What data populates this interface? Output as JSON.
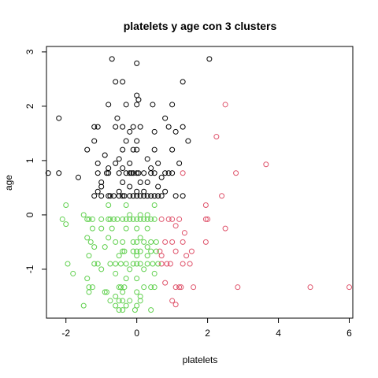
{
  "chart_data": {
    "type": "scatter",
    "title": "platelets  y  age con  3  clusters",
    "xlabel": "platelets",
    "ylabel": "age",
    "xlim": [
      -2.55,
      6.1
    ],
    "ylim": [
      -1.9,
      3.1
    ],
    "x_ticks": [
      -2,
      0,
      2,
      4,
      6
    ],
    "y_ticks": [
      -1,
      0,
      1,
      2,
      3
    ],
    "x_tick_labels": [
      "-2",
      "0",
      "2",
      "4",
      "6"
    ],
    "y_tick_labels": [
      "-1",
      "0",
      "1",
      "2",
      "3"
    ],
    "grid": false,
    "legend": "none",
    "series": [
      {
        "color": "#000000",
        "points": [
          [
            -0.7,
            2.87
          ],
          [
            0.0,
            2.79
          ],
          [
            2.05,
            2.87
          ],
          [
            -0.6,
            2.45
          ],
          [
            -0.4,
            2.45
          ],
          [
            1.3,
            2.45
          ],
          [
            0.0,
            2.2
          ],
          [
            0.05,
            2.12
          ],
          [
            -0.8,
            2.03
          ],
          [
            -0.3,
            2.03
          ],
          [
            0.0,
            2.03
          ],
          [
            0.45,
            2.03
          ],
          [
            1.0,
            2.03
          ],
          [
            -2.2,
            1.78
          ],
          [
            -0.55,
            1.78
          ],
          [
            0.8,
            1.78
          ],
          [
            -1.2,
            1.62
          ],
          [
            -1.1,
            1.62
          ],
          [
            -0.6,
            1.62
          ],
          [
            -0.4,
            1.62
          ],
          [
            -0.1,
            1.62
          ],
          [
            0.1,
            1.62
          ],
          [
            0.9,
            1.62
          ],
          [
            1.3,
            1.62
          ],
          [
            -0.2,
            1.53
          ],
          [
            0.5,
            1.53
          ],
          [
            1.1,
            1.53
          ],
          [
            -1.2,
            1.36
          ],
          [
            -0.3,
            1.36
          ],
          [
            0.0,
            1.36
          ],
          [
            1.45,
            1.36
          ],
          [
            -1.4,
            1.2
          ],
          [
            -0.4,
            1.2
          ],
          [
            -0.1,
            1.2
          ],
          [
            0.0,
            1.2
          ],
          [
            0.5,
            1.2
          ],
          [
            1.0,
            1.2
          ],
          [
            -0.9,
            1.1
          ],
          [
            -0.5,
            1.03
          ],
          [
            0.3,
            1.03
          ],
          [
            -1.1,
            0.95
          ],
          [
            -0.6,
            0.95
          ],
          [
            -0.2,
            0.95
          ],
          [
            0.6,
            0.95
          ],
          [
            1.2,
            0.95
          ],
          [
            -0.8,
            0.86
          ],
          [
            -0.4,
            0.86
          ],
          [
            0.4,
            0.86
          ],
          [
            -2.5,
            0.77
          ],
          [
            -2.2,
            0.77
          ],
          [
            -1.1,
            0.77
          ],
          [
            -0.85,
            0.77
          ],
          [
            -0.8,
            0.77
          ],
          [
            -0.5,
            0.77
          ],
          [
            -0.3,
            0.77
          ],
          [
            -0.2,
            0.77
          ],
          [
            -0.15,
            0.77
          ],
          [
            -0.1,
            0.77
          ],
          [
            0.0,
            0.77
          ],
          [
            0.05,
            0.77
          ],
          [
            0.2,
            0.77
          ],
          [
            0.4,
            0.77
          ],
          [
            0.5,
            0.77
          ],
          [
            0.8,
            0.77
          ],
          [
            0.9,
            0.77
          ],
          [
            1.0,
            0.77
          ],
          [
            -1.65,
            0.69
          ],
          [
            0.7,
            0.69
          ],
          [
            -1.0,
            0.6
          ],
          [
            -0.4,
            0.6
          ],
          [
            0.1,
            0.6
          ],
          [
            0.3,
            0.6
          ],
          [
            -1.0,
            0.52
          ],
          [
            -0.2,
            0.52
          ],
          [
            0.6,
            0.52
          ],
          [
            -1.1,
            0.43
          ],
          [
            -0.5,
            0.43
          ],
          [
            0.0,
            0.43
          ],
          [
            0.2,
            0.43
          ],
          [
            0.8,
            0.43
          ],
          [
            -1.2,
            0.35
          ],
          [
            -1.0,
            0.35
          ],
          [
            -0.8,
            0.35
          ],
          [
            -0.75,
            0.35
          ],
          [
            -0.65,
            0.35
          ],
          [
            -0.5,
            0.35
          ],
          [
            -0.4,
            0.35
          ],
          [
            -0.35,
            0.35
          ],
          [
            -0.2,
            0.35
          ],
          [
            -0.1,
            0.35
          ],
          [
            0.0,
            0.35
          ],
          [
            0.1,
            0.35
          ],
          [
            0.2,
            0.35
          ],
          [
            0.3,
            0.35
          ],
          [
            0.4,
            0.35
          ],
          [
            0.5,
            0.35
          ],
          [
            0.6,
            0.35
          ],
          [
            0.7,
            0.35
          ],
          [
            1.1,
            0.35
          ],
          [
            1.3,
            0.35
          ]
        ]
      },
      {
        "color": "#DF536B",
        "points": [
          [
            2.5,
            2.03
          ],
          [
            2.25,
            1.44
          ],
          [
            1.3,
            0.77
          ],
          [
            2.8,
            0.77
          ],
          [
            3.65,
            0.93
          ],
          [
            2.4,
            0.35
          ],
          [
            1.95,
            0.18
          ],
          [
            0.7,
            -0.08
          ],
          [
            0.9,
            -0.08
          ],
          [
            1.0,
            -0.08
          ],
          [
            1.2,
            -0.08
          ],
          [
            1.95,
            -0.08
          ],
          [
            2.0,
            -0.08
          ],
          [
            1.1,
            -0.2
          ],
          [
            2.5,
            -0.25
          ],
          [
            1.35,
            -0.33
          ],
          [
            0.8,
            -0.5
          ],
          [
            1.0,
            -0.5
          ],
          [
            1.3,
            -0.5
          ],
          [
            1.95,
            -0.5
          ],
          [
            0.65,
            -0.67
          ],
          [
            1.1,
            -0.67
          ],
          [
            1.55,
            -0.67
          ],
          [
            0.7,
            -0.75
          ],
          [
            1.4,
            -0.75
          ],
          [
            0.7,
            -0.9
          ],
          [
            0.85,
            -0.9
          ],
          [
            0.95,
            -0.9
          ],
          [
            1.3,
            -0.9
          ],
          [
            1.5,
            -0.9
          ],
          [
            0.8,
            -1.25
          ],
          [
            1.1,
            -1.33
          ],
          [
            1.2,
            -1.33
          ],
          [
            1.25,
            -1.33
          ],
          [
            1.6,
            -1.33
          ],
          [
            2.85,
            -1.33
          ],
          [
            4.9,
            -1.33
          ],
          [
            6.0,
            -1.33
          ],
          [
            1.0,
            -1.58
          ],
          [
            1.1,
            -1.65
          ]
        ]
      },
      {
        "color": "#61D04F",
        "points": [
          [
            -2.0,
            0.18
          ],
          [
            -0.3,
            0.18
          ],
          [
            0.5,
            0.18
          ],
          [
            -0.8,
            0.18
          ],
          [
            -1.5,
            0.0
          ],
          [
            -0.2,
            0.0
          ],
          [
            0.1,
            0.0
          ],
          [
            0.3,
            0.0
          ],
          [
            -2.1,
            -0.08
          ],
          [
            -1.4,
            -0.08
          ],
          [
            -1.35,
            -0.08
          ],
          [
            -1.25,
            -0.08
          ],
          [
            -1.0,
            -0.08
          ],
          [
            -0.8,
            -0.08
          ],
          [
            -0.75,
            -0.08
          ],
          [
            -0.65,
            -0.08
          ],
          [
            -0.55,
            -0.08
          ],
          [
            -0.4,
            -0.08
          ],
          [
            -0.3,
            -0.08
          ],
          [
            -0.2,
            -0.08
          ],
          [
            -0.1,
            -0.08
          ],
          [
            0.0,
            -0.08
          ],
          [
            0.1,
            -0.08
          ],
          [
            0.2,
            -0.08
          ],
          [
            0.3,
            -0.08
          ],
          [
            0.4,
            -0.08
          ],
          [
            0.5,
            -0.08
          ],
          [
            -2.0,
            -0.17
          ],
          [
            -1.25,
            -0.25
          ],
          [
            -1.0,
            -0.25
          ],
          [
            -0.7,
            -0.25
          ],
          [
            -0.3,
            -0.25
          ],
          [
            0.0,
            -0.25
          ],
          [
            0.3,
            -0.25
          ],
          [
            -1.4,
            -0.42
          ],
          [
            -0.8,
            -0.42
          ],
          [
            0.1,
            -0.42
          ],
          [
            -1.3,
            -0.5
          ],
          [
            -0.6,
            -0.5
          ],
          [
            -0.4,
            -0.5
          ],
          [
            -0.1,
            -0.5
          ],
          [
            0.0,
            -0.5
          ],
          [
            0.2,
            -0.5
          ],
          [
            0.4,
            -0.5
          ],
          [
            0.55,
            -0.5
          ],
          [
            -1.2,
            -0.59
          ],
          [
            -0.9,
            -0.59
          ],
          [
            0.3,
            -0.59
          ],
          [
            -0.4,
            -0.67
          ],
          [
            -0.35,
            -0.67
          ],
          [
            -0.1,
            -0.67
          ],
          [
            0.0,
            -0.67
          ],
          [
            0.1,
            -0.67
          ],
          [
            0.4,
            -0.67
          ],
          [
            0.55,
            -0.67
          ],
          [
            -1.35,
            -0.75
          ],
          [
            -0.5,
            -0.75
          ],
          [
            0.0,
            -0.75
          ],
          [
            0.3,
            -0.75
          ],
          [
            -1.95,
            -0.9
          ],
          [
            -1.2,
            -0.9
          ],
          [
            -1.1,
            -0.9
          ],
          [
            -0.75,
            -0.9
          ],
          [
            -0.6,
            -0.9
          ],
          [
            -0.45,
            -0.9
          ],
          [
            -0.3,
            -0.9
          ],
          [
            -0.1,
            -0.9
          ],
          [
            0.0,
            -0.9
          ],
          [
            0.1,
            -0.9
          ],
          [
            0.3,
            -0.9
          ],
          [
            0.45,
            -0.9
          ],
          [
            0.6,
            -0.9
          ],
          [
            -1.0,
            -1.0
          ],
          [
            -0.2,
            -1.0
          ],
          [
            0.2,
            -1.0
          ],
          [
            -1.8,
            -1.08
          ],
          [
            -0.6,
            -1.08
          ],
          [
            0.5,
            -1.08
          ],
          [
            -1.4,
            -1.17
          ],
          [
            -0.3,
            -1.17
          ],
          [
            0.0,
            -1.17
          ],
          [
            -1.35,
            -1.33
          ],
          [
            -1.25,
            -1.33
          ],
          [
            -0.5,
            -1.33
          ],
          [
            -0.45,
            -1.33
          ],
          [
            -0.35,
            -1.33
          ],
          [
            0.2,
            -1.33
          ],
          [
            0.4,
            -1.33
          ],
          [
            0.5,
            -1.33
          ],
          [
            -1.35,
            -1.42
          ],
          [
            -0.9,
            -1.42
          ],
          [
            -0.4,
            -1.42
          ],
          [
            0.0,
            -1.42
          ],
          [
            -0.6,
            -1.5
          ],
          [
            0.1,
            -1.5
          ],
          [
            -0.75,
            -1.58
          ],
          [
            -0.5,
            -1.58
          ],
          [
            -0.4,
            -1.58
          ],
          [
            -0.2,
            -1.58
          ],
          [
            0.1,
            -1.58
          ],
          [
            -1.5,
            -1.67
          ],
          [
            -0.6,
            -1.67
          ],
          [
            -0.3,
            -1.67
          ],
          [
            0.0,
            -1.67
          ],
          [
            -0.4,
            -1.75
          ],
          [
            -0.5,
            -1.75
          ],
          [
            -0.05,
            -1.75
          ],
          [
            0.4,
            -1.75
          ],
          [
            -0.85,
            -1.42
          ]
        ]
      }
    ]
  }
}
